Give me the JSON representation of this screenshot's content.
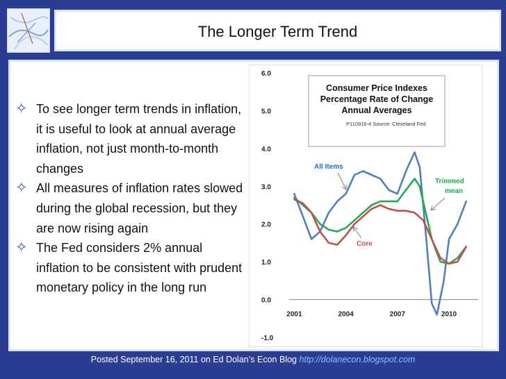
{
  "title": "The Longer Term Trend",
  "bullets": [
    "To see longer term trends in inflation, it is useful to look at annual average inflation, not just month-to-month changes",
    "All measures of inflation rates slowed during the global recession, but they are now rising again",
    "The Fed considers 2% annual inflation to be consistent with prudent monetary policy in the long run"
  ],
  "footer": {
    "text": "Posted September 16, 2011 on Ed Dolan’s Econ Blog",
    "link": "http://dolanecon.blogspot.com"
  },
  "chart_data": {
    "type": "line",
    "title_lines": [
      "Consumer Price Indexes",
      "Percentage Rate of Change",
      "Annual Averages"
    ],
    "source": "P110916-4 Source: Cleveland Fed",
    "ylim": [
      -1.0,
      6.0
    ],
    "yticks": [
      "6.0",
      "5.0",
      "4.0",
      "3.0",
      "2.0",
      "1.0",
      "0.0",
      "-1.0"
    ],
    "xticks": [
      "2001",
      "2004",
      "2007",
      "2010"
    ],
    "xlim": [
      2000.7,
      2011.7
    ],
    "series": [
      {
        "name": "All Items",
        "color": "#4f7fbf",
        "points": [
          [
            2001.0,
            2.8
          ],
          [
            2001.5,
            2.2
          ],
          [
            2002.0,
            1.6
          ],
          [
            2002.5,
            1.8
          ],
          [
            2003.0,
            2.3
          ],
          [
            2003.5,
            2.6
          ],
          [
            2004.0,
            2.8
          ],
          [
            2004.5,
            3.3
          ],
          [
            2005.0,
            3.4
          ],
          [
            2005.5,
            3.3
          ],
          [
            2006.0,
            3.2
          ],
          [
            2006.5,
            2.9
          ],
          [
            2007.0,
            2.8
          ],
          [
            2007.5,
            3.4
          ],
          [
            2008.0,
            3.9
          ],
          [
            2008.3,
            3.5
          ],
          [
            2008.7,
            1.5
          ],
          [
            2009.0,
            -0.1
          ],
          [
            2009.3,
            -0.4
          ],
          [
            2009.7,
            0.5
          ],
          [
            2010.0,
            1.6
          ],
          [
            2010.5,
            2.0
          ],
          [
            2011.0,
            2.6
          ]
        ]
      },
      {
        "name": "Trimmed mean",
        "color": "#1fae4b",
        "points": [
          [
            2001.0,
            2.7
          ],
          [
            2001.5,
            2.5
          ],
          [
            2002.0,
            2.3
          ],
          [
            2002.5,
            2.0
          ],
          [
            2003.0,
            1.85
          ],
          [
            2003.5,
            1.8
          ],
          [
            2004.0,
            1.9
          ],
          [
            2004.5,
            2.1
          ],
          [
            2005.0,
            2.3
          ],
          [
            2005.5,
            2.5
          ],
          [
            2006.0,
            2.6
          ],
          [
            2006.5,
            2.6
          ],
          [
            2007.0,
            2.6
          ],
          [
            2007.5,
            2.9
          ],
          [
            2008.0,
            3.2
          ],
          [
            2008.3,
            3.0
          ],
          [
            2008.7,
            2.2
          ],
          [
            2009.0,
            1.6
          ],
          [
            2009.5,
            1.0
          ],
          [
            2010.0,
            0.95
          ],
          [
            2010.5,
            1.1
          ],
          [
            2011.0,
            1.4
          ]
        ]
      },
      {
        "name": "Core",
        "color": "#c0504d",
        "points": [
          [
            2001.0,
            2.65
          ],
          [
            2001.5,
            2.55
          ],
          [
            2002.0,
            2.3
          ],
          [
            2002.5,
            1.8
          ],
          [
            2003.0,
            1.5
          ],
          [
            2003.5,
            1.45
          ],
          [
            2004.0,
            1.7
          ],
          [
            2004.5,
            2.0
          ],
          [
            2005.0,
            2.2
          ],
          [
            2005.5,
            2.4
          ],
          [
            2006.0,
            2.5
          ],
          [
            2006.5,
            2.4
          ],
          [
            2007.0,
            2.35
          ],
          [
            2007.5,
            2.35
          ],
          [
            2008.0,
            2.3
          ],
          [
            2008.5,
            2.1
          ],
          [
            2009.0,
            1.6
          ],
          [
            2009.5,
            1.1
          ],
          [
            2010.0,
            0.95
          ],
          [
            2010.5,
            1.0
          ],
          [
            2011.0,
            1.4
          ]
        ]
      }
    ],
    "annotations": [
      {
        "label": "All Items",
        "color": "#1f6fd0"
      },
      {
        "label": "Trimmed",
        "label2": "mean",
        "color": "#1fae4b"
      },
      {
        "label": "Core",
        "color": "#c0504d"
      }
    ]
  }
}
